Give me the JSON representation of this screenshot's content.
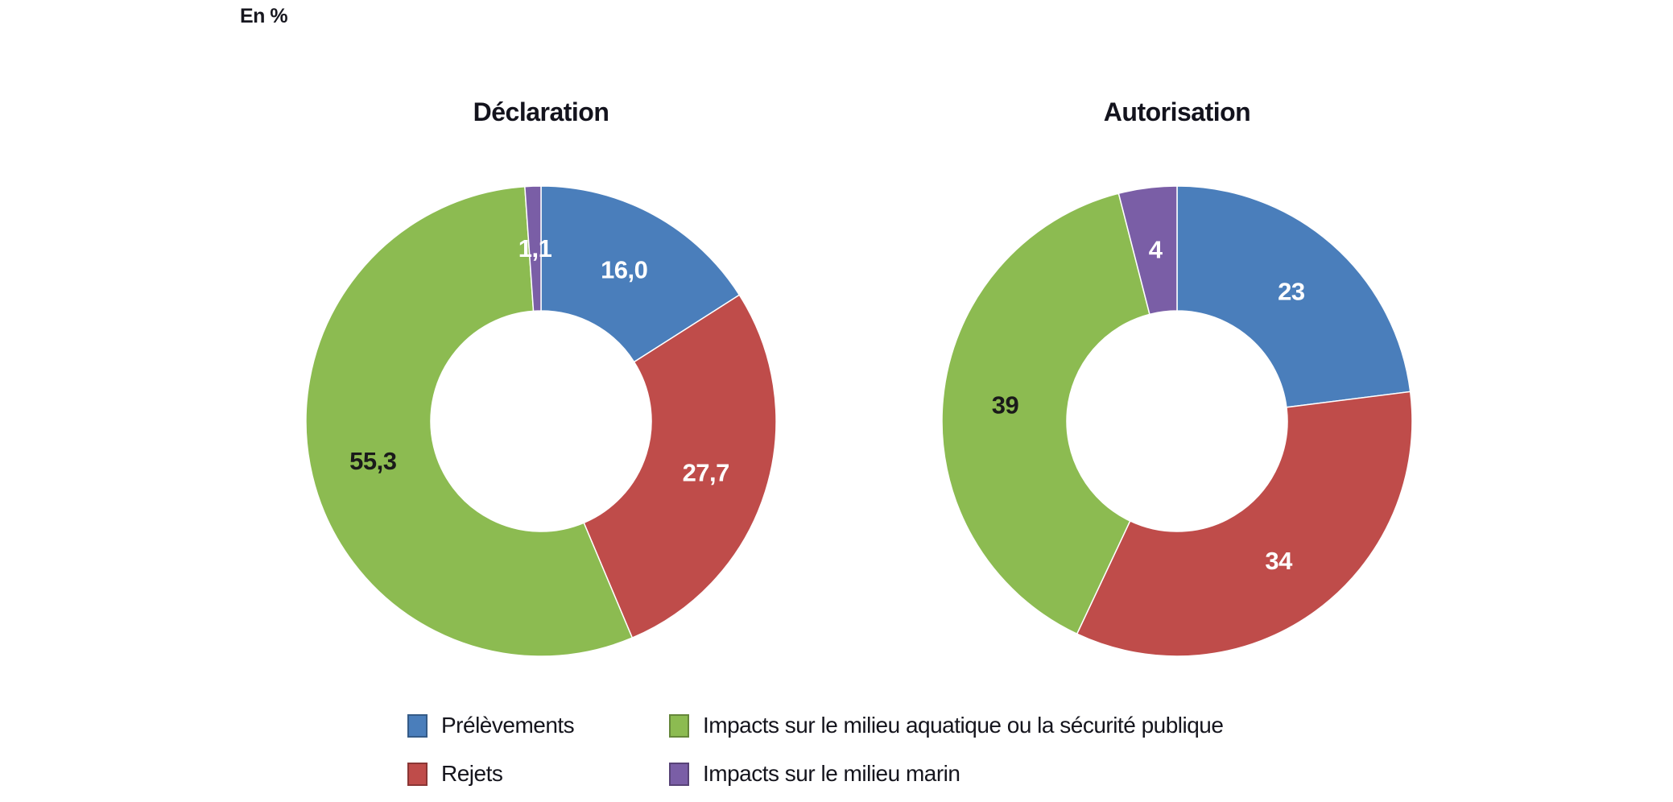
{
  "unit_label": "En %",
  "legend": [
    {
      "label": "Prélèvements",
      "color": "#4a7ebb"
    },
    {
      "label": "Rejets",
      "color": "#bf4c4a"
    },
    {
      "label": "Impacts sur le milieu aquatique ou la sécurité publique",
      "color": "#8cbb51"
    },
    {
      "label": "Impacts sur le milieu marin",
      "color": "#7a5ea6"
    }
  ],
  "chart_data": [
    {
      "type": "pie",
      "subtype": "donut",
      "title": "Déclaration",
      "unit": "%",
      "categories": [
        "Prélèvements",
        "Rejets",
        "Impacts sur le milieu aquatique ou la sécurité publique",
        "Impacts sur le milieu marin"
      ],
      "keys": [
        "prelevements",
        "rejets",
        "impacts-milieu-aquatique",
        "impacts-milieu-marin"
      ],
      "values": [
        16.0,
        27.7,
        55.3,
        1.1
      ],
      "labels": [
        "16,0",
        "27,7",
        "55,3",
        "1,1"
      ],
      "colors": [
        "#4a7ebb",
        "#bf4c4a",
        "#8cbb51",
        "#7a5ea6"
      ],
      "label_colors": [
        "#ffffff",
        "#ffffff",
        "#1a1a1a",
        "#ffffff"
      ],
      "start_angle_deg": 0,
      "direction": "clockwise",
      "legend_position": "bottom"
    },
    {
      "type": "pie",
      "subtype": "donut",
      "title": "Autorisation",
      "unit": "%",
      "categories": [
        "Prélèvements",
        "Rejets",
        "Impacts sur le milieu aquatique ou la sécurité publique",
        "Impacts sur le milieu marin"
      ],
      "keys": [
        "prelevements",
        "rejets",
        "impacts-milieu-aquatique",
        "impacts-milieu-marin"
      ],
      "values": [
        23,
        34,
        39,
        4
      ],
      "labels": [
        "23",
        "34",
        "39",
        "4"
      ],
      "colors": [
        "#4a7ebb",
        "#bf4c4a",
        "#8cbb51",
        "#7a5ea6"
      ],
      "label_colors": [
        "#ffffff",
        "#ffffff",
        "#1a1a1a",
        "#ffffff"
      ],
      "start_angle_deg": 0,
      "direction": "clockwise",
      "legend_position": "bottom"
    }
  ]
}
